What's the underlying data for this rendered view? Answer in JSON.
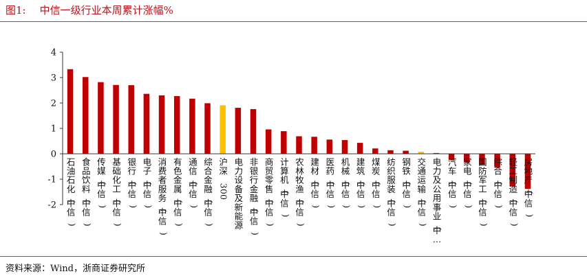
{
  "header": {
    "fig_label": "图1:",
    "title": "中信一级行业本周累计涨幅%"
  },
  "footer": {
    "source": "资料来源：Wind，浙商证券研究所"
  },
  "colors": {
    "bar": "#c00000",
    "highlight": "#ffc000",
    "accent_rule": "#c0392b",
    "title": "#b8121b"
  },
  "chart_data": {
    "type": "bar",
    "title": "",
    "xlabel": "",
    "ylabel": "",
    "ylim": [
      -2,
      4
    ],
    "yticks": [
      4,
      3,
      2,
      1,
      0,
      -1,
      -2
    ],
    "grid": false,
    "legend": "none",
    "highlight_categories": [
      "沪深300",
      "交通运输(中信)"
    ],
    "categories": [
      "石油石化(中信)",
      "食品饮料(中信)",
      "传媒(中信)",
      "基础化工(中信)",
      "银行(中信)",
      "电子(中信)",
      "消费者服务(中信)",
      "有色金属(中信)",
      "通信(中信)",
      "综合金融(中信)",
      "沪深300",
      "电力设备及新能源",
      "非银行金融(中信)",
      "商贸零售(中信)",
      "计算机(中信)",
      "农林牧渔(中信)",
      "建材(中信)",
      "医药(中信)",
      "机械(中信)",
      "建筑(中信)",
      "煤炭(中信)",
      "纺织服装(中信)",
      "钢铁(中信)",
      "交通运输(中信)",
      "电力及公用事业(中…",
      "汽车(中信)",
      "家电(中信)",
      "国防军工(中信)",
      "综合(中信)",
      "轻工制造(中信)",
      "房地产(中信)"
    ],
    "values": [
      3.33,
      3.02,
      2.82,
      2.71,
      2.7,
      2.36,
      2.3,
      2.27,
      2.17,
      1.99,
      1.91,
      1.81,
      1.76,
      0.96,
      0.89,
      0.69,
      0.67,
      0.56,
      0.54,
      0.43,
      0.21,
      0.14,
      0.12,
      0.08,
      0.03,
      -0.24,
      -0.34,
      -0.43,
      -0.55,
      -1.28,
      -1.38
    ]
  }
}
